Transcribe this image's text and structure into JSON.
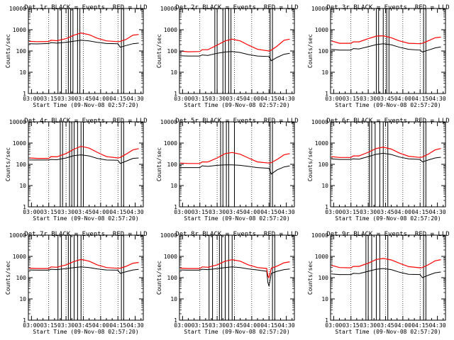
{
  "chart_data": [
    {
      "type": "line",
      "title": "Det 1r BLACK = Events, RED = LLD",
      "xlabel": "Start Time (09-Nov-08 02:57:20)",
      "ylabel": "Counts/sec",
      "x_ticks": [
        "03:00",
        "03:15",
        "03:30",
        "03:45",
        "04:00",
        "04:15",
        "04:30"
      ],
      "y_ticks": [
        "1",
        "10",
        "100",
        "1000",
        "10000"
      ],
      "ylim": [
        1,
        10000
      ],
      "y_scale": "log",
      "grid": false,
      "series": [
        {
          "color": "#000000",
          "x": [
            "02:58",
            "03:05",
            "03:15",
            "03:17",
            "03:22",
            "03:30",
            "03:37",
            "03:43",
            "03:50",
            "03:57",
            "04:05",
            "04:15",
            "04:17",
            "04:22",
            "04:28",
            "04:33"
          ],
          "values": [
            220,
            215,
            225,
            250,
            235,
            255,
            290,
            320,
            300,
            255,
            225,
            220,
            150,
            180,
            220,
            235
          ]
        },
        {
          "color": "#ff0000",
          "x": [
            "02:58",
            "03:05",
            "03:15",
            "03:17",
            "03:22",
            "03:30",
            "03:37",
            "03:43",
            "03:50",
            "03:57",
            "04:05",
            "04:15",
            "04:17",
            "04:22",
            "04:28",
            "04:33"
          ],
          "values": [
            285,
            275,
            280,
            320,
            305,
            380,
            560,
            700,
            590,
            400,
            300,
            275,
            285,
            350,
            560,
            600
          ]
        }
      ],
      "vertical_lines": [
        "03:23",
        "03:26",
        "03:32",
        "03:34",
        "03:36",
        "03:40",
        "03:42",
        "04:18",
        "04:20"
      ]
    },
    {
      "type": "line",
      "title": "Det 2r BLACK = Events, RED = LLD",
      "xlabel": "Start Time (09-Nov-08 02:57:20)",
      "ylabel": "Counts/sec",
      "x_ticks": [
        "03:00",
        "03:15",
        "03:30",
        "03:45",
        "04:00",
        "04:15",
        "04:30"
      ],
      "y_ticks": [
        "1",
        "10",
        "100",
        "1000",
        "10000"
      ],
      "ylim": [
        1,
        10000
      ],
      "y_scale": "log",
      "grid": false,
      "series": [
        {
          "color": "#000000",
          "x": [
            "02:58",
            "03:05",
            "03:15",
            "03:17",
            "03:22",
            "03:30",
            "03:37",
            "03:43",
            "03:50",
            "03:57",
            "04:05",
            "04:15",
            "04:17",
            "04:22",
            "04:28",
            "04:33"
          ],
          "values": [
            60,
            58,
            58,
            65,
            62,
            78,
            90,
            95,
            85,
            68,
            58,
            55,
            35,
            50,
            70,
            78
          ]
        },
        {
          "color": "#ff0000",
          "x": [
            "02:58",
            "03:05",
            "03:15",
            "03:17",
            "03:22",
            "03:30",
            "03:37",
            "03:43",
            "03:50",
            "03:57",
            "04:05",
            "04:15",
            "04:17",
            "04:22",
            "04:28",
            "04:33"
          ],
          "values": [
            100,
            92,
            95,
            115,
            115,
            190,
            300,
            360,
            300,
            190,
            120,
            100,
            110,
            170,
            320,
            360
          ]
        }
      ],
      "vertical_lines": [
        "03:28",
        "03:30",
        "03:35",
        "03:37",
        "03:40",
        "03:42",
        "04:16",
        "04:18"
      ]
    },
    {
      "type": "line",
      "title": "Det 3r BLACK = Events, RED = LLD",
      "xlabel": "Start Time (09-Nov-08 02:57:20)",
      "ylabel": "Counts/sec",
      "x_ticks": [
        "03:00",
        "03:15",
        "03:30",
        "03:45",
        "04:00",
        "04:15",
        "04:30"
      ],
      "y_ticks": [
        "1",
        "10",
        "100",
        "1000",
        "10000"
      ],
      "ylim": [
        1,
        10000
      ],
      "y_scale": "log",
      "grid": false,
      "series": [
        {
          "color": "#000000",
          "x": [
            "02:58",
            "03:05",
            "03:15",
            "03:17",
            "03:22",
            "03:30",
            "03:37",
            "03:43",
            "03:50",
            "03:57",
            "04:05",
            "04:15",
            "04:17",
            "04:22",
            "04:28",
            "04:33"
          ],
          "values": [
            120,
            110,
            110,
            130,
            125,
            160,
            200,
            220,
            195,
            150,
            120,
            110,
            90,
            110,
            140,
            155
          ]
        },
        {
          "color": "#ff0000",
          "x": [
            "02:58",
            "03:05",
            "03:15",
            "03:17",
            "03:22",
            "03:30",
            "03:37",
            "03:43",
            "03:50",
            "03:57",
            "04:05",
            "04:15",
            "04:17",
            "04:22",
            "04:28",
            "04:33"
          ],
          "values": [
            300,
            230,
            230,
            270,
            270,
            380,
            500,
            520,
            420,
            300,
            230,
            220,
            230,
            300,
            420,
            450
          ]
        }
      ],
      "vertical_lines": [
        "03:37",
        "03:39",
        "03:43",
        "03:46",
        "03:48",
        "04:18",
        "04:20"
      ]
    },
    {
      "type": "line",
      "title": "Det 4r BLACK = Events, RED = LLD",
      "xlabel": "Start Time (09-Nov-08 02:57:20)",
      "ylabel": "Counts/sec",
      "x_ticks": [
        "03:00",
        "03:15",
        "03:30",
        "03:45",
        "04:00",
        "04:15",
        "04:30"
      ],
      "y_ticks": [
        "1",
        "10",
        "100",
        "1000",
        "10000"
      ],
      "ylim": [
        1,
        10000
      ],
      "y_scale": "log",
      "grid": false,
      "series": [
        {
          "color": "#000000",
          "x": [
            "02:58",
            "03:05",
            "03:15",
            "03:17",
            "03:22",
            "03:30",
            "03:37",
            "03:43",
            "03:50",
            "03:57",
            "04:05",
            "04:15",
            "04:17",
            "04:22",
            "04:28",
            "04:33"
          ],
          "values": [
            160,
            160,
            160,
            170,
            165,
            200,
            260,
            280,
            250,
            190,
            160,
            155,
            110,
            140,
            190,
            200
          ]
        },
        {
          "color": "#ff0000",
          "x": [
            "02:58",
            "03:05",
            "03:15",
            "03:17",
            "03:22",
            "03:30",
            "03:37",
            "03:43",
            "03:50",
            "03:57",
            "04:05",
            "04:15",
            "04:17",
            "04:22",
            "04:28",
            "04:33"
          ],
          "values": [
            200,
            190,
            190,
            230,
            225,
            320,
            520,
            700,
            580,
            370,
            230,
            200,
            210,
            300,
            480,
            550
          ]
        }
      ],
      "vertical_lines": [
        "03:25",
        "03:27",
        "03:33",
        "03:35",
        "03:37",
        "03:40",
        "03:43",
        "03:45",
        "04:18",
        "04:20"
      ]
    },
    {
      "type": "line",
      "title": "Det 5r BLACK = Events, RED = LLD",
      "xlabel": "Start Time (09-Nov-08 02:57:20)",
      "ylabel": "Counts/sec",
      "x_ticks": [
        "03:00",
        "03:15",
        "03:30",
        "03:45",
        "04:00",
        "04:15",
        "04:30"
      ],
      "y_ticks": [
        "1",
        "10",
        "100",
        "1000",
        "10000"
      ],
      "ylim": [
        1,
        10000
      ],
      "y_scale": "log",
      "grid": false,
      "series": [
        {
          "color": "#000000",
          "x": [
            "02:58",
            "03:05",
            "03:15",
            "03:17",
            "03:22",
            "03:30",
            "03:37",
            "03:43",
            "03:50",
            "03:57",
            "04:05",
            "04:15",
            "04:17",
            "04:22",
            "04:28",
            "04:33"
          ],
          "values": [
            70,
            70,
            70,
            85,
            80,
            90,
            95,
            95,
            90,
            80,
            70,
            65,
            35,
            55,
            75,
            85
          ]
        },
        {
          "color": "#ff0000",
          "x": [
            "02:58",
            "03:05",
            "03:15",
            "03:17",
            "03:22",
            "03:30",
            "03:37",
            "03:43",
            "03:50",
            "03:57",
            "04:05",
            "04:15",
            "04:17",
            "04:22",
            "04:28",
            "04:33"
          ],
          "values": [
            115,
            110,
            110,
            130,
            130,
            200,
            320,
            360,
            300,
            200,
            130,
            115,
            120,
            170,
            280,
            320
          ]
        }
      ],
      "vertical_lines": [
        "03:33",
        "03:35",
        "03:38",
        "03:40",
        "03:45",
        "04:16",
        "04:18"
      ]
    },
    {
      "type": "line",
      "title": "Det 6r BLACK = Events, RED = LLD",
      "xlabel": "Start Time (09-Nov-08 02:57:20)",
      "ylabel": "Counts/sec",
      "x_ticks": [
        "03:00",
        "03:15",
        "03:30",
        "03:45",
        "04:00",
        "04:15",
        "04:30"
      ],
      "y_ticks": [
        "1",
        "10",
        "100",
        "1000",
        "10000"
      ],
      "ylim": [
        1,
        10000
      ],
      "y_scale": "log",
      "grid": false,
      "series": [
        {
          "color": "#000000",
          "x": [
            "02:58",
            "03:05",
            "03:15",
            "03:17",
            "03:22",
            "03:30",
            "03:37",
            "03:43",
            "03:50",
            "03:57",
            "04:05",
            "04:15",
            "04:17",
            "04:22",
            "04:28",
            "04:33"
          ],
          "values": [
            180,
            170,
            170,
            180,
            175,
            230,
            300,
            330,
            290,
            220,
            180,
            170,
            130,
            160,
            200,
            215
          ]
        },
        {
          "color": "#ff0000",
          "x": [
            "02:58",
            "03:05",
            "03:15",
            "03:17",
            "03:22",
            "03:30",
            "03:37",
            "03:43",
            "03:50",
            "03:57",
            "04:05",
            "04:15",
            "04:17",
            "04:22",
            "04:28",
            "04:33"
          ],
          "values": [
            230,
            210,
            210,
            250,
            250,
            370,
            560,
            640,
            520,
            340,
            240,
            210,
            220,
            300,
            480,
            560
          ]
        }
      ],
      "vertical_lines": [
        "03:31",
        "03:33",
        "03:36",
        "03:40",
        "03:43",
        "03:47",
        "04:18",
        "04:20"
      ]
    },
    {
      "type": "line",
      "title": "Det 7r BLACK = Events, RED = LLD",
      "xlabel": "Start Time (09-Nov-08 02:57:20)",
      "ylabel": "Counts/sec",
      "x_ticks": [
        "03:00",
        "03:15",
        "03:30",
        "03:45",
        "04:00",
        "04:15",
        "04:30"
      ],
      "y_ticks": [
        "1",
        "10",
        "100",
        "1000",
        "10000"
      ],
      "ylim": [
        1,
        10000
      ],
      "y_scale": "log",
      "grid": false,
      "series": [
        {
          "color": "#000000",
          "x": [
            "02:58",
            "03:05",
            "03:15",
            "03:17",
            "03:22",
            "03:30",
            "03:37",
            "03:43",
            "03:50",
            "03:57",
            "04:05",
            "04:15",
            "04:17",
            "04:22",
            "04:28",
            "04:33"
          ],
          "values": [
            230,
            225,
            225,
            250,
            240,
            265,
            300,
            320,
            300,
            260,
            230,
            225,
            160,
            190,
            230,
            245
          ]
        },
        {
          "color": "#ff0000",
          "x": [
            "02:58",
            "03:05",
            "03:15",
            "03:17",
            "03:22",
            "03:30",
            "03:37",
            "03:43",
            "03:50",
            "03:57",
            "04:05",
            "04:15",
            "04:17",
            "04:22",
            "04:28",
            "04:33"
          ],
          "values": [
            280,
            270,
            270,
            320,
            310,
            400,
            580,
            720,
            600,
            400,
            300,
            275,
            280,
            340,
            480,
            520
          ]
        }
      ],
      "vertical_lines": [
        "03:23",
        "03:26",
        "03:32",
        "03:34",
        "03:37",
        "03:40",
        "03:43",
        "04:18",
        "04:20"
      ]
    },
    {
      "type": "line",
      "title": "Det 8r BLACK = Events, RED = LLD",
      "xlabel": "Start Time (09-Nov-08 02:57:20)",
      "ylabel": "Counts/sec",
      "x_ticks": [
        "03:00",
        "03:15",
        "03:30",
        "03:45",
        "04:00",
        "04:15",
        "04:30"
      ],
      "y_ticks": [
        "1",
        "10",
        "100",
        "1000",
        "10000"
      ],
      "ylim": [
        1,
        10000
      ],
      "y_scale": "log",
      "grid": false,
      "series": [
        {
          "color": "#000000",
          "x": [
            "02:58",
            "03:05",
            "03:15",
            "03:17",
            "03:22",
            "03:30",
            "03:37",
            "03:43",
            "03:50",
            "03:57",
            "04:05",
            "04:13",
            "04:14",
            "04:15",
            "04:17",
            "04:22",
            "04:28",
            "04:33"
          ],
          "values": [
            230,
            225,
            225,
            250,
            240,
            265,
            300,
            320,
            300,
            260,
            230,
            200,
            60,
            40,
            160,
            200,
            240,
            255
          ]
        },
        {
          "color": "#ff0000",
          "x": [
            "02:58",
            "03:05",
            "03:15",
            "03:17",
            "03:22",
            "03:30",
            "03:37",
            "03:43",
            "03:50",
            "03:57",
            "04:05",
            "04:13",
            "04:14",
            "04:15",
            "04:17",
            "04:22",
            "04:28",
            "04:33"
          ],
          "values": [
            280,
            270,
            270,
            320,
            310,
            400,
            600,
            700,
            600,
            400,
            300,
            270,
            120,
            100,
            280,
            350,
            500,
            560
          ]
        }
      ],
      "vertical_lines": [
        "03:23",
        "03:26",
        "03:32",
        "03:34",
        "03:37",
        "03:40",
        "03:43",
        "04:18",
        "04:20"
      ]
    },
    {
      "type": "line",
      "title": "Det 9r BLACK = Events, RED = LLD",
      "xlabel": "Start Time (09-Nov-08 02:57:20)",
      "ylabel": "Counts/sec",
      "x_ticks": [
        "03:00",
        "03:15",
        "03:30",
        "03:45",
        "04:00",
        "04:15",
        "04:30"
      ],
      "y_ticks": [
        "1",
        "10",
        "100",
        "1000",
        "10000"
      ],
      "ylim": [
        1,
        10000
      ],
      "y_scale": "log",
      "grid": false,
      "series": [
        {
          "color": "#000000",
          "x": [
            "02:58",
            "03:05",
            "03:15",
            "03:17",
            "03:22",
            "03:30",
            "03:37",
            "03:43",
            "03:50",
            "03:57",
            "04:05",
            "04:15",
            "04:17",
            "04:22",
            "04:28",
            "04:33"
          ],
          "values": [
            150,
            140,
            140,
            160,
            155,
            200,
            250,
            270,
            240,
            180,
            145,
            140,
            100,
            130,
            170,
            185
          ]
        },
        {
          "color": "#ff0000",
          "x": [
            "02:58",
            "03:05",
            "03:15",
            "03:17",
            "03:22",
            "03:30",
            "03:37",
            "03:43",
            "03:50",
            "03:57",
            "04:05",
            "04:15",
            "04:17",
            "04:22",
            "04:28",
            "04:33"
          ],
          "values": [
            380,
            300,
            290,
            340,
            340,
            480,
            720,
            800,
            680,
            480,
            330,
            290,
            300,
            400,
            620,
            700
          ]
        }
      ],
      "vertical_lines": [
        "03:28",
        "03:30",
        "03:33",
        "03:37",
        "03:40",
        "03:47",
        "04:18",
        "04:20"
      ]
    }
  ]
}
